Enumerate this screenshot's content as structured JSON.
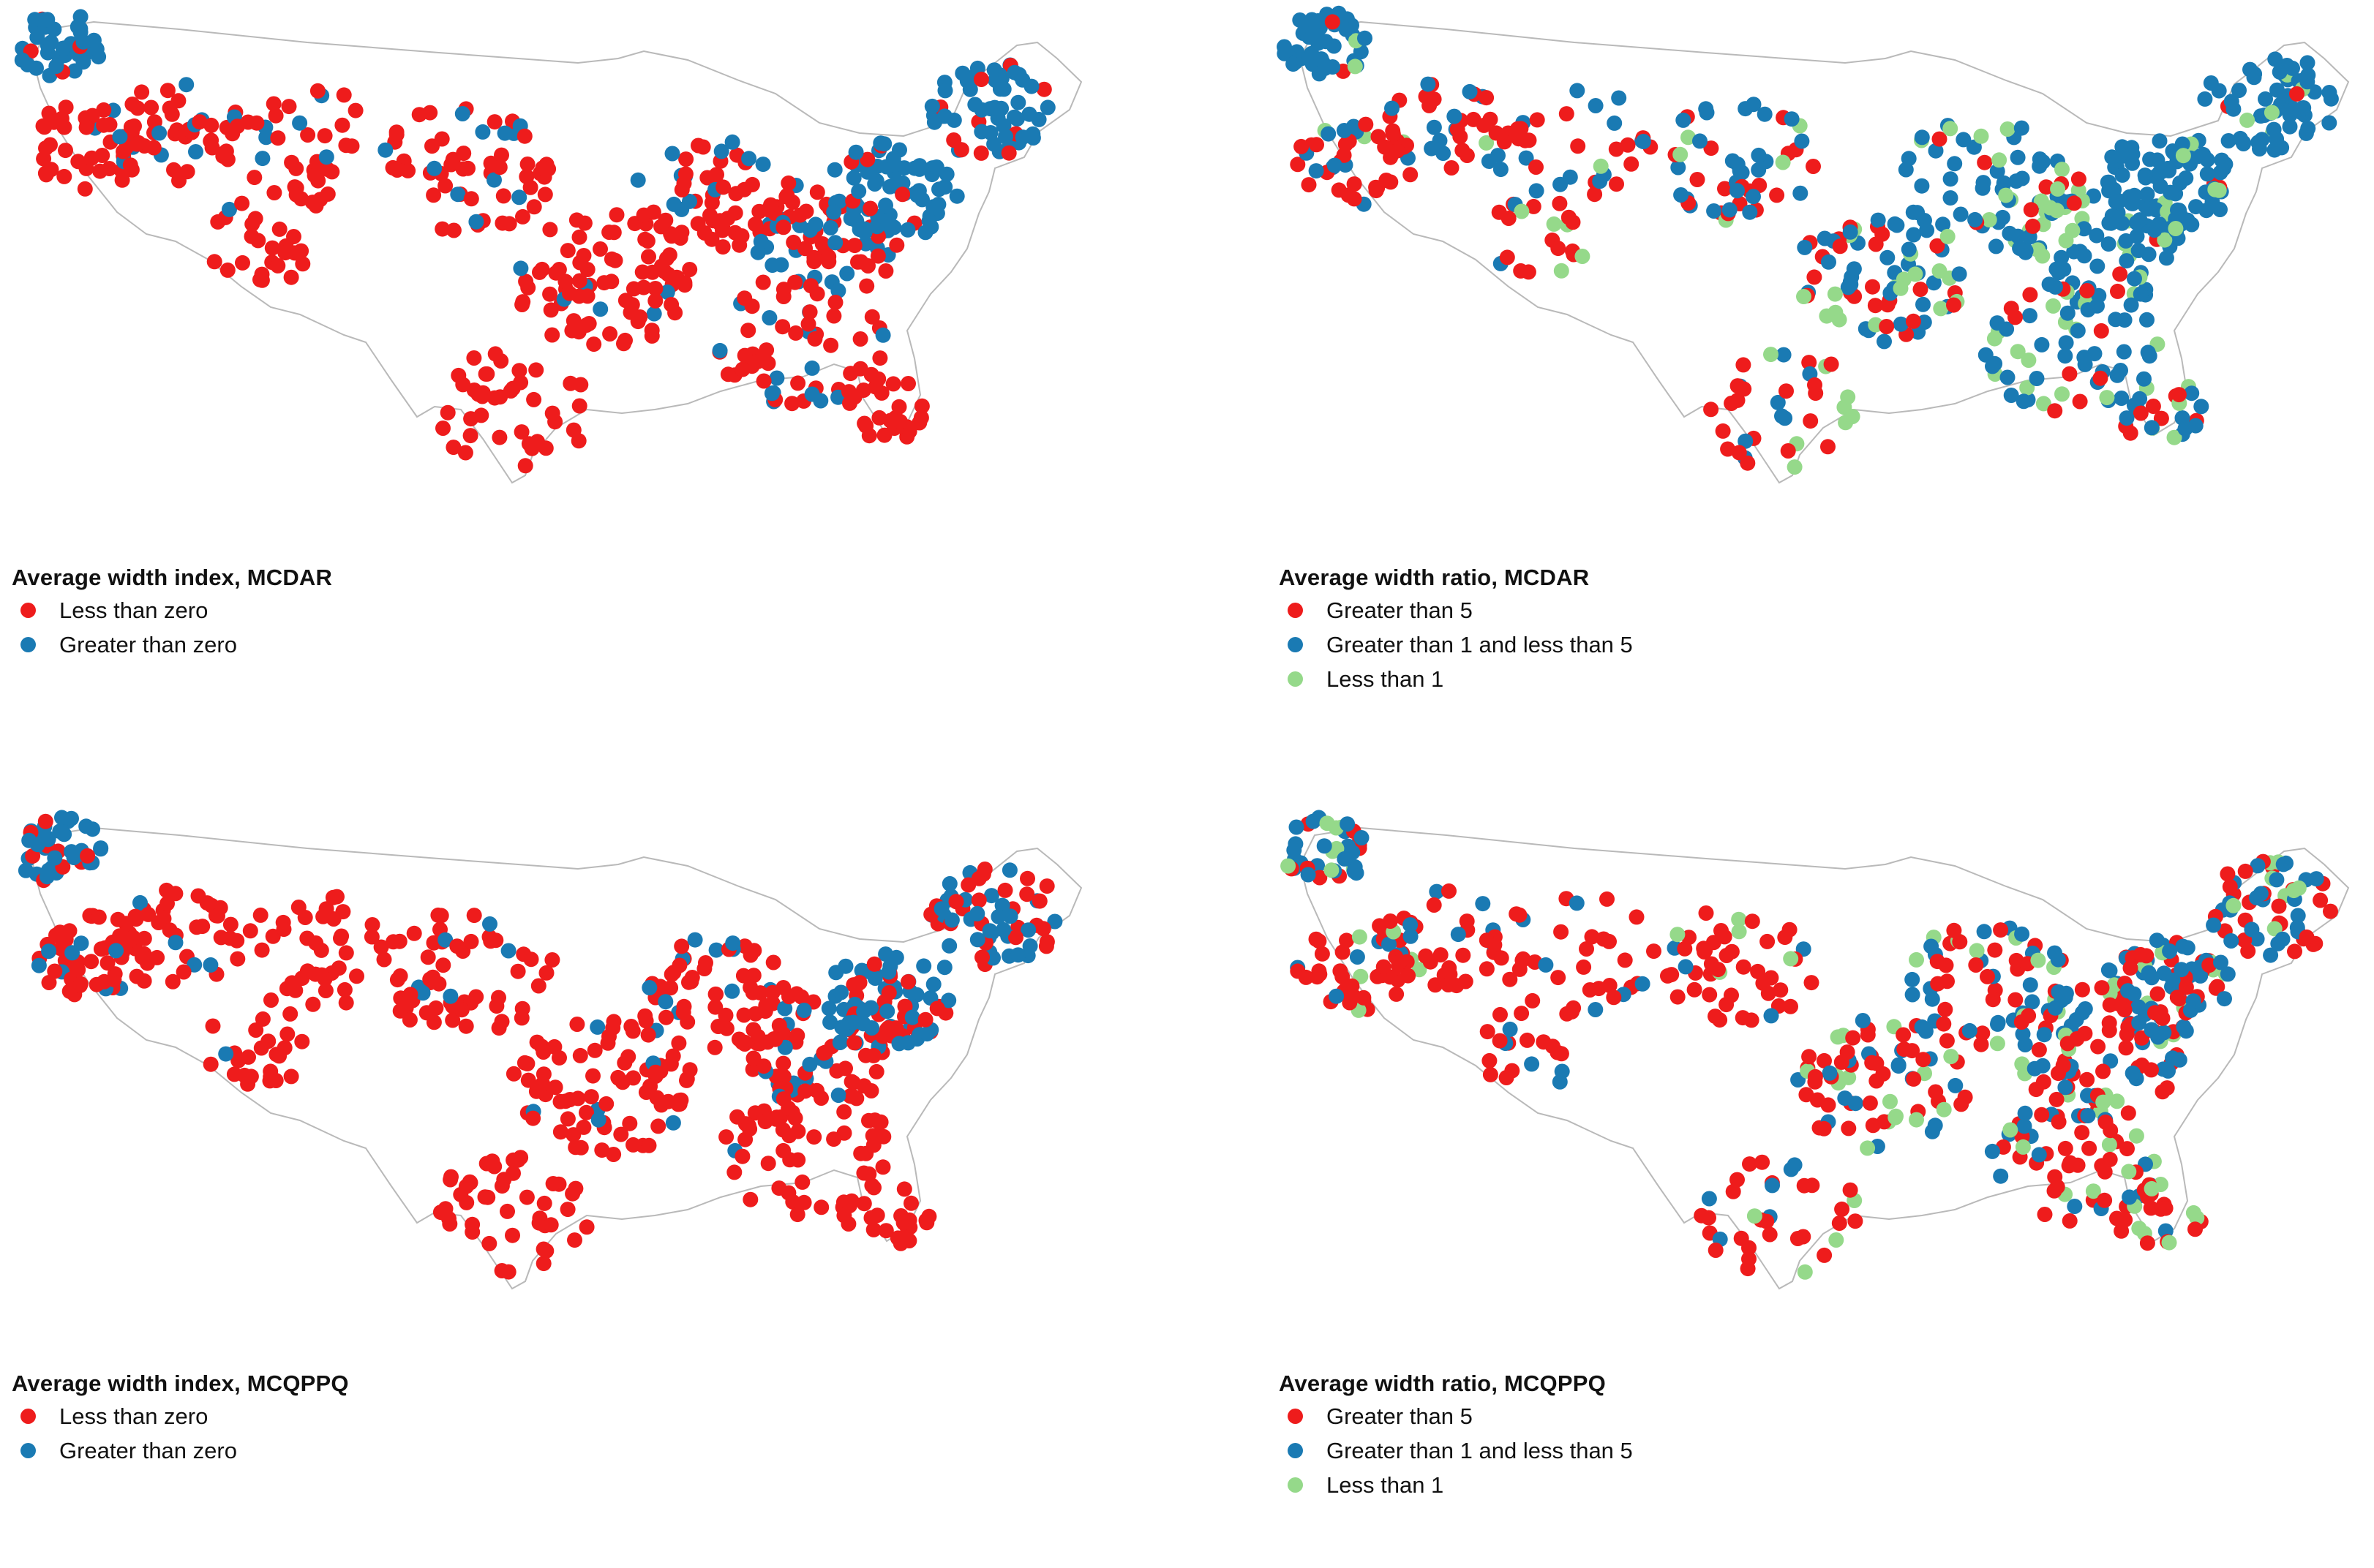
{
  "colors": {
    "red": "#ee1c1c",
    "blue": "#1a7ab3",
    "green": "#95d98a",
    "outline": "#b9b9b9"
  },
  "panels": [
    {
      "id": "index-mcdar",
      "legend_title": "Average width index, MCDAR",
      "legend": [
        {
          "label": "Less than zero",
          "color": "red"
        },
        {
          "label": "Greater than zero",
          "color": "blue"
        }
      ]
    },
    {
      "id": "ratio-mcdar",
      "legend_title": "Average width ratio, MCDAR",
      "legend": [
        {
          "label": "Greater than 5",
          "color": "red"
        },
        {
          "label": "Greater than 1 and less than 5",
          "color": "blue"
        },
        {
          "label": "Less than 1",
          "color": "green"
        }
      ]
    },
    {
      "id": "index-mcqppq",
      "legend_title": "Average width index, MCQPPQ",
      "legend": [
        {
          "label": "Less than zero",
          "color": "red"
        },
        {
          "label": "Greater than zero",
          "color": "blue"
        }
      ]
    },
    {
      "id": "ratio-mcqppq",
      "legend_title": "Average width ratio, MCQPPQ",
      "legend": [
        {
          "label": "Greater than 5",
          "color": "red"
        },
        {
          "label": "Greater than 1 and less than 5",
          "color": "blue"
        },
        {
          "label": "Less than 1",
          "color": "green"
        }
      ]
    }
  ]
}
